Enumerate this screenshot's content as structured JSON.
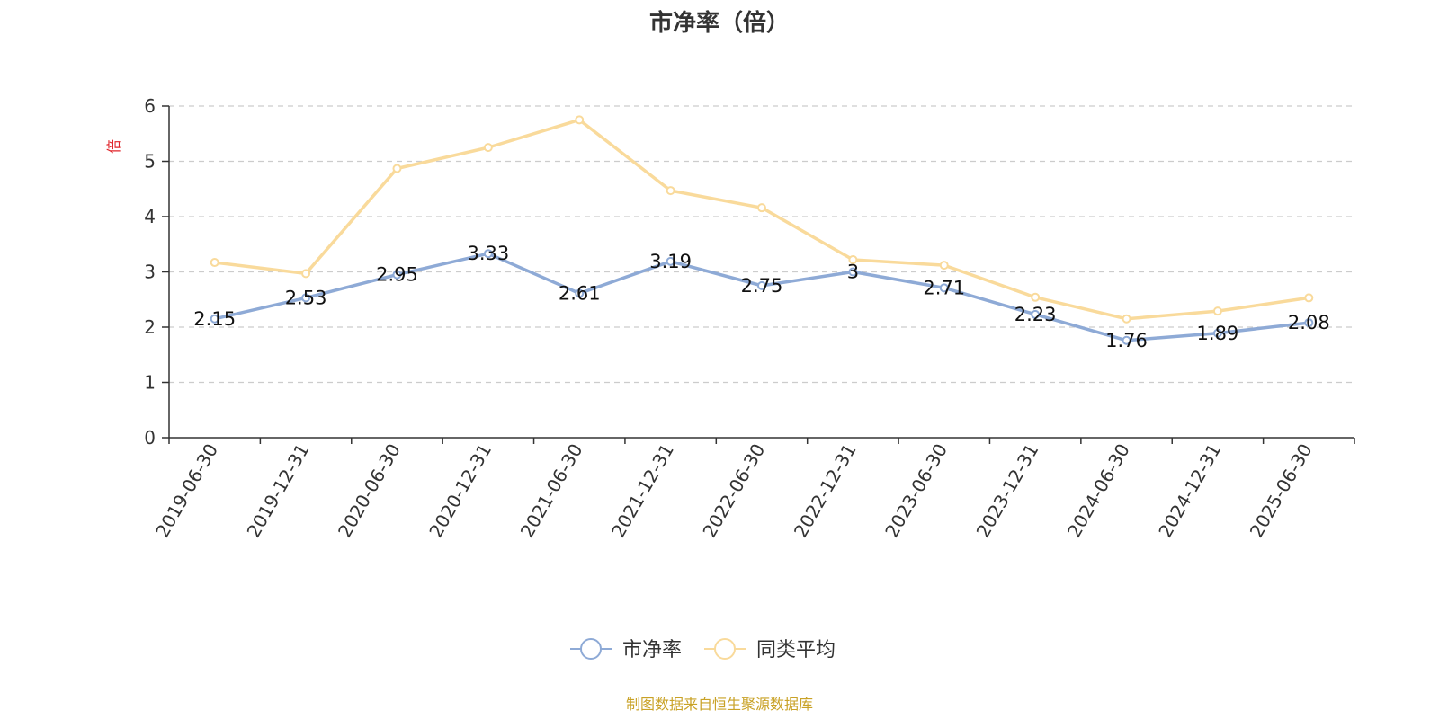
{
  "chart_data": {
    "type": "line",
    "title": "市净率（倍）",
    "ylabel": "倍",
    "ylim": [
      0,
      6
    ],
    "yticks": [
      0,
      1,
      2,
      3,
      4,
      5,
      6
    ],
    "grid": true,
    "legend_position": "bottom",
    "categories": [
      "2019-06-30",
      "2019-12-31",
      "2020-06-30",
      "2020-12-31",
      "2021-06-30",
      "2021-12-31",
      "2022-06-30",
      "2022-12-31",
      "2023-06-30",
      "2023-12-31",
      "2024-06-30",
      "2024-12-31",
      "2025-06-30"
    ],
    "series": [
      {
        "name": "市净率",
        "color": "#8eaad6",
        "values": [
          2.15,
          2.53,
          2.95,
          3.33,
          2.61,
          3.19,
          2.75,
          3,
          2.71,
          2.23,
          1.76,
          1.89,
          2.08
        ],
        "labels": [
          "2.15",
          "2.53",
          "2.95",
          "3.33",
          "2.61",
          "3.19",
          "2.75",
          "3",
          "2.71",
          "2.23",
          "1.76",
          "1.89",
          "2.08"
        ],
        "show_labels": true
      },
      {
        "name": "同类平均",
        "color": "#f9da9b",
        "values": [
          3.17,
          2.97,
          4.87,
          5.25,
          5.75,
          4.47,
          4.16,
          3.22,
          3.12,
          2.54,
          2.15,
          2.29,
          2.53
        ],
        "show_labels": false
      }
    ],
    "ylabel_color": "#e0262b"
  },
  "source_note": "制图数据来自恒生聚源数据库",
  "source_color": "#c9a227"
}
